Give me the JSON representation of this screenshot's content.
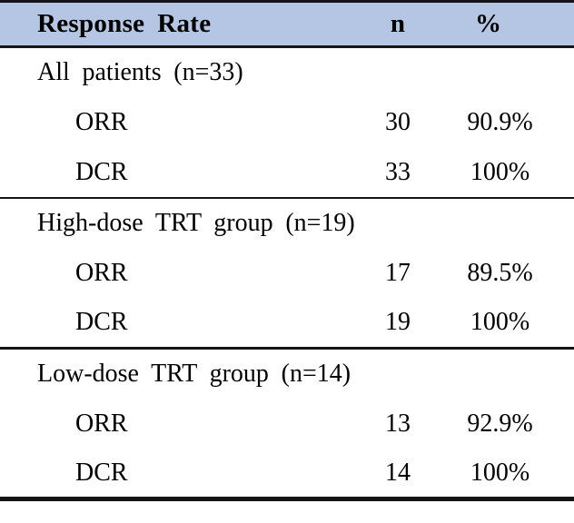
{
  "table": {
    "header": {
      "response_rate": "Response Rate",
      "n": "n",
      "percent": "%"
    },
    "sections": [
      {
        "title": "All patients (n=33)",
        "rows": [
          {
            "label": "ORR",
            "n": "30",
            "pct": "90.9%"
          },
          {
            "label": "DCR",
            "n": "33",
            "pct": "100%"
          }
        ]
      },
      {
        "title": "High-dose TRT group (n=19)",
        "rows": [
          {
            "label": "ORR",
            "n": "17",
            "pct": "89.5%"
          },
          {
            "label": "DCR",
            "n": "19",
            "pct": "100%"
          }
        ]
      },
      {
        "title": "Low-dose TRT group (n=14)",
        "rows": [
          {
            "label": "ORR",
            "n": "13",
            "pct": "92.9%"
          },
          {
            "label": "DCR",
            "n": "14",
            "pct": "100%"
          }
        ]
      }
    ],
    "colors": {
      "header_bg": "#B4C6E4",
      "rule": "#141414",
      "text": "#000000"
    }
  }
}
